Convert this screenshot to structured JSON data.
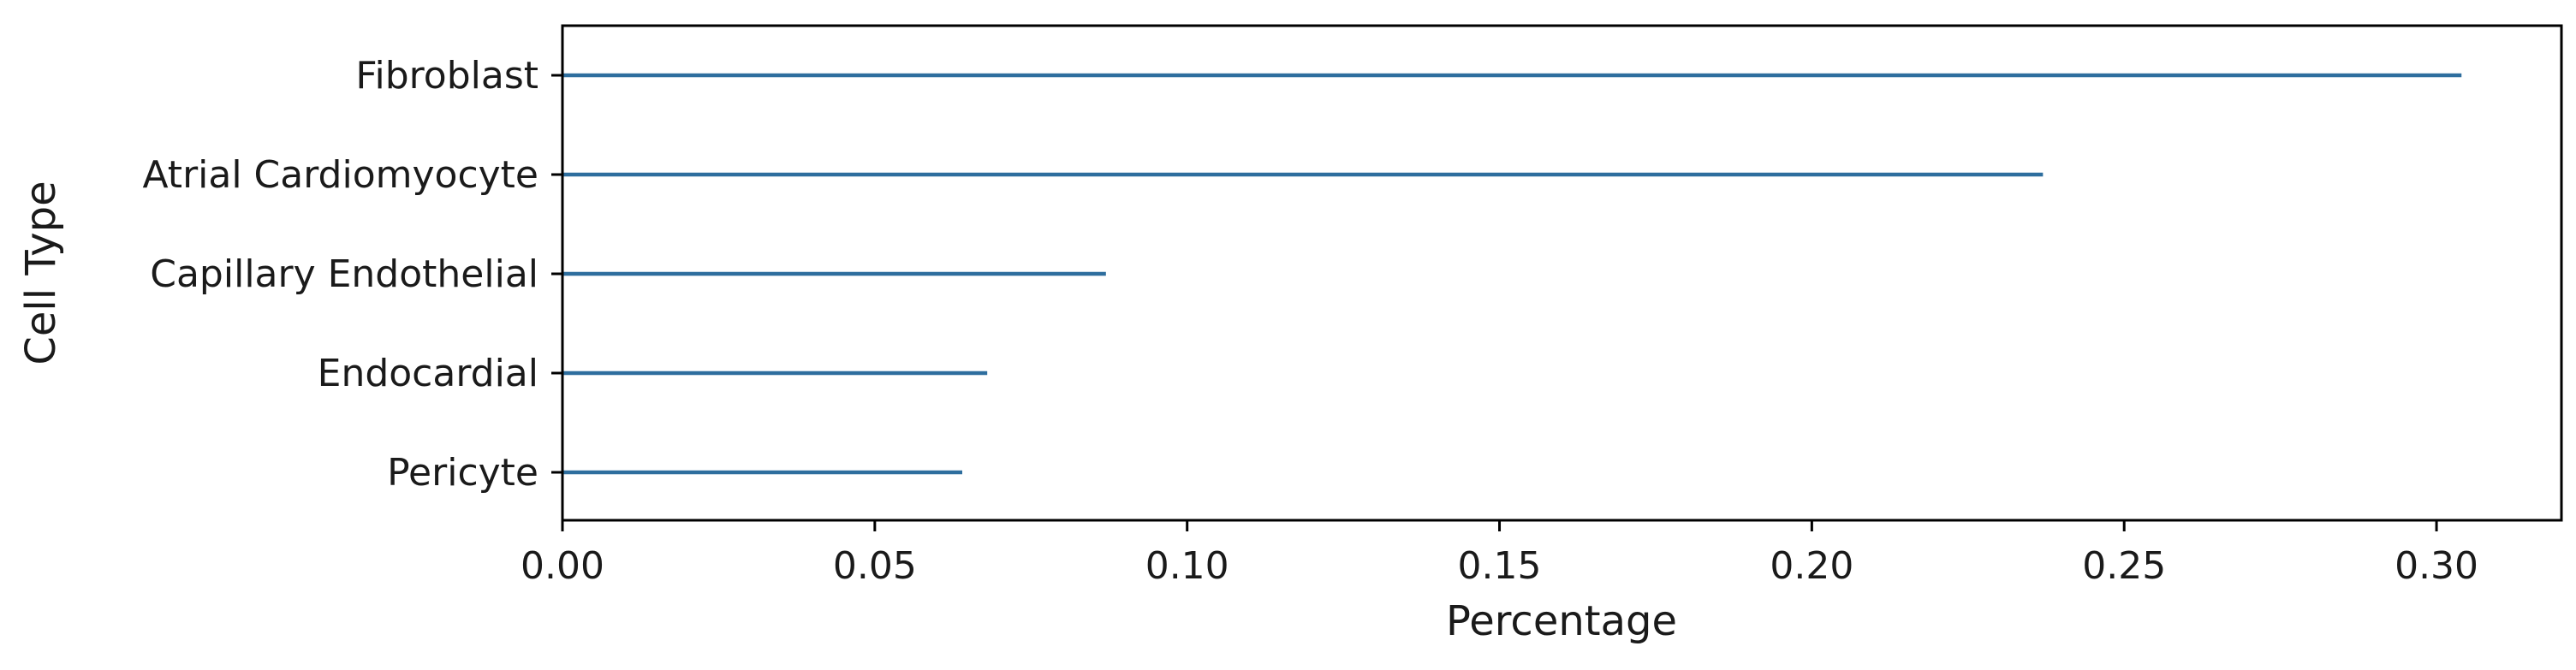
{
  "chart_data": {
    "type": "bar",
    "orientation": "horizontal",
    "style": "stem",
    "xlabel": "Percentage",
    "ylabel": "Cell Type",
    "xlim": [
      0.0,
      0.32
    ],
    "xticks": [
      0.0,
      0.05,
      0.1,
      0.15,
      0.2,
      0.25,
      0.3
    ],
    "xtick_labels": [
      "0.00",
      "0.05",
      "0.10",
      "0.15",
      "0.20",
      "0.25",
      "0.30"
    ],
    "categories": [
      "Fibroblast",
      "Atrial Cardiomyocyte",
      "Capillary Endothelial",
      "Endocardial",
      "Pericyte"
    ],
    "values": [
      0.304,
      0.237,
      0.087,
      0.068,
      0.064
    ],
    "color": "#2e6e9e",
    "grid": false,
    "legend": "none"
  }
}
